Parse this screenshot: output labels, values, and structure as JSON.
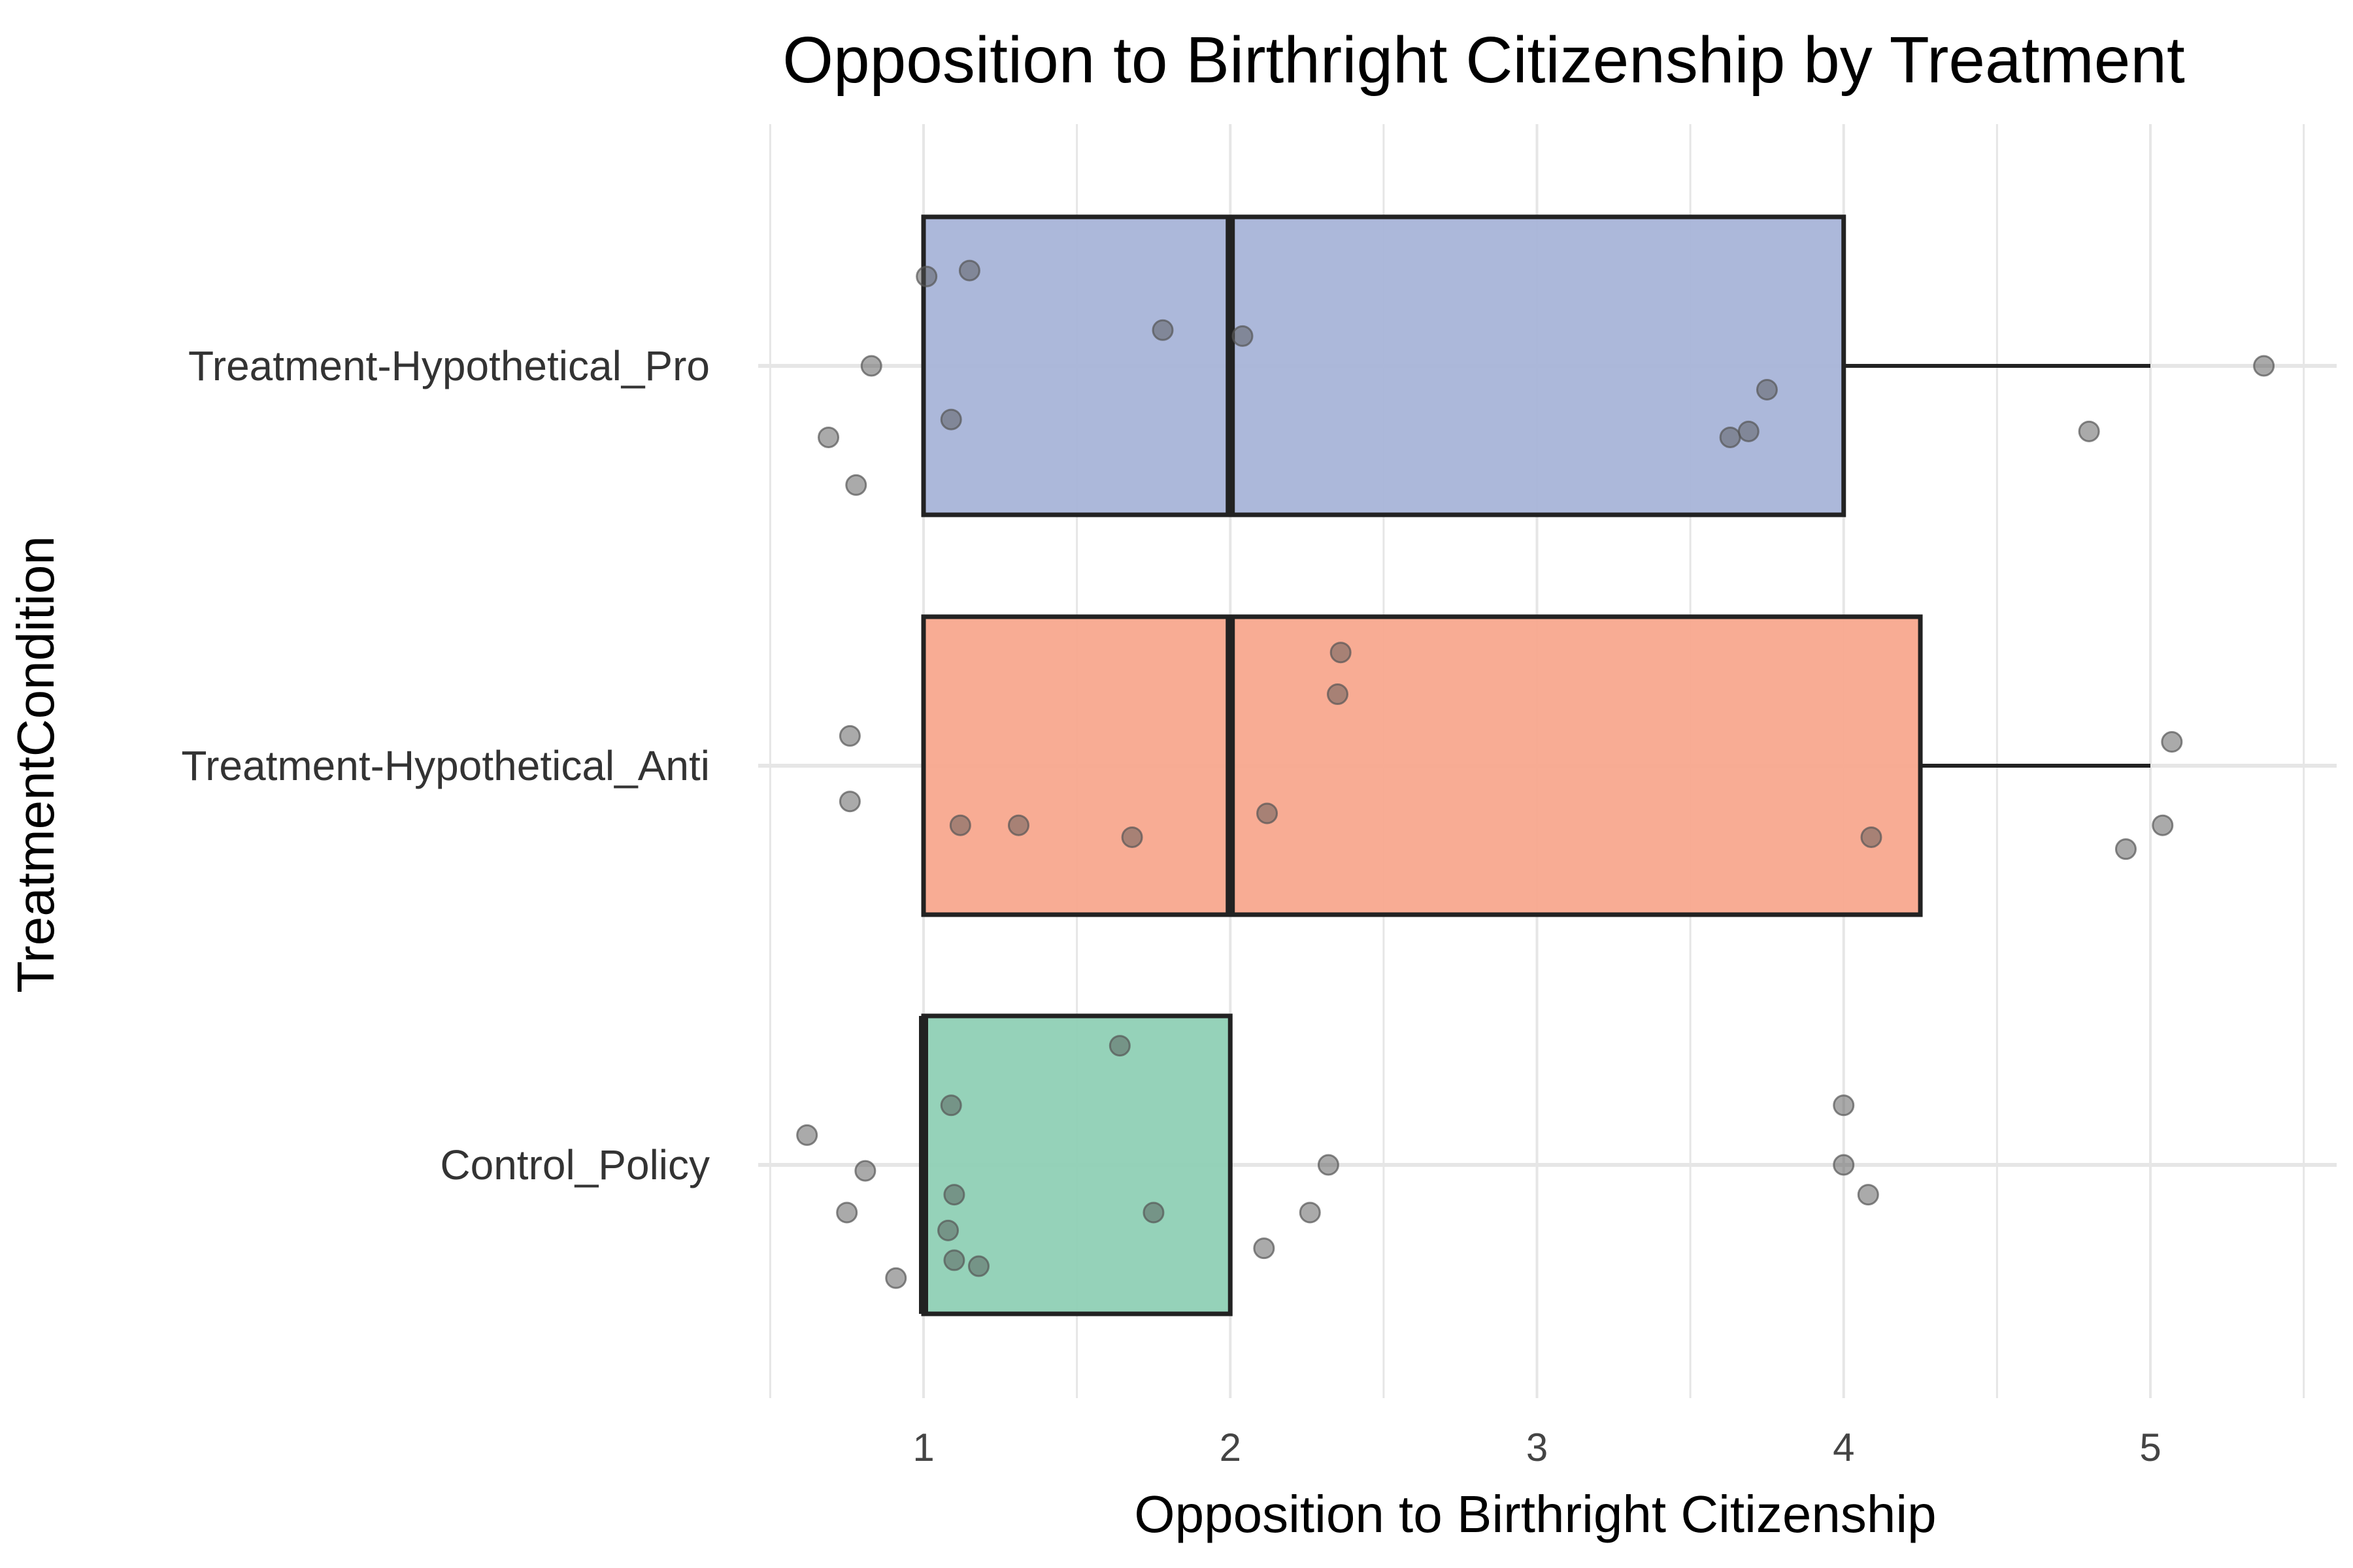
{
  "chart_data": {
    "type": "boxplot",
    "title": "Opposition to Birthright Citizenship by Treatment",
    "xlabel": "Opposition to Birthright Citizenship",
    "ylabel": "TreatmentCondition",
    "xlim": [
      0.5,
      5.6
    ],
    "x_ticks": [
      1,
      2,
      3,
      4,
      5
    ],
    "x_tick_labels": [
      "1",
      "2",
      "3",
      "4",
      "5"
    ],
    "grid": true,
    "orientation": "horizontal",
    "categories": [
      "Treatment-Hypothetical_Pro",
      "Treatment-Hypothetical_Anti",
      "Control_Policy"
    ],
    "boxes": [
      {
        "category": "Treatment-Hypothetical_Pro",
        "color": "#a8b4d8",
        "min": 1,
        "q1": 1,
        "median": 2,
        "q3": 4,
        "max": 5,
        "points": [
          {
            "x": 1.01,
            "y": 0.15
          },
          {
            "x": 1.15,
            "y": 0.16
          },
          {
            "x": 1.78,
            "y": 0.06
          },
          {
            "x": 2.04,
            "y": 0.05
          },
          {
            "x": 0.83,
            "y": 0.0
          },
          {
            "x": 3.75,
            "y": -0.04
          },
          {
            "x": 1.09,
            "y": -0.09
          },
          {
            "x": 3.69,
            "y": -0.11
          },
          {
            "x": 3.63,
            "y": -0.12
          },
          {
            "x": 0.69,
            "y": -0.12
          },
          {
            "x": 4.8,
            "y": -0.11
          },
          {
            "x": 0.78,
            "y": -0.2
          },
          {
            "x": 5.37,
            "y": 0.0
          }
        ]
      },
      {
        "category": "Treatment-Hypothetical_Anti",
        "color": "#f8a88e",
        "min": 1,
        "q1": 1,
        "median": 2,
        "q3": 4.25,
        "max": 5,
        "points": [
          {
            "x": 2.36,
            "y": 0.19
          },
          {
            "x": 2.35,
            "y": 0.12
          },
          {
            "x": 0.76,
            "y": 0.05
          },
          {
            "x": 5.07,
            "y": 0.04
          },
          {
            "x": 0.76,
            "y": -0.06
          },
          {
            "x": 2.12,
            "y": -0.08
          },
          {
            "x": 1.12,
            "y": -0.1
          },
          {
            "x": 1.31,
            "y": -0.1
          },
          {
            "x": 5.04,
            "y": -0.1
          },
          {
            "x": 1.68,
            "y": -0.12
          },
          {
            "x": 4.09,
            "y": -0.12
          },
          {
            "x": 4.92,
            "y": -0.14
          }
        ]
      },
      {
        "category": "Control_Policy",
        "color": "#8fd0b5",
        "min": 1,
        "q1": 1,
        "median": 1,
        "q3": 2,
        "max": 2,
        "points": [
          {
            "x": 1.64,
            "y": 0.2
          },
          {
            "x": 1.09,
            "y": 0.1
          },
          {
            "x": 4.0,
            "y": 0.1
          },
          {
            "x": 0.62,
            "y": 0.05
          },
          {
            "x": 2.32,
            "y": 0.0
          },
          {
            "x": 0.81,
            "y": -0.01
          },
          {
            "x": 4.0,
            "y": 0.0
          },
          {
            "x": 1.1,
            "y": -0.05
          },
          {
            "x": 4.08,
            "y": -0.05
          },
          {
            "x": 0.75,
            "y": -0.08
          },
          {
            "x": 1.75,
            "y": -0.08
          },
          {
            "x": 2.26,
            "y": -0.08
          },
          {
            "x": 1.08,
            "y": -0.11
          },
          {
            "x": 2.11,
            "y": -0.14
          },
          {
            "x": 1.1,
            "y": -0.16
          },
          {
            "x": 1.18,
            "y": -0.17
          },
          {
            "x": 0.91,
            "y": -0.19
          }
        ]
      }
    ],
    "point_color": "#555555"
  }
}
